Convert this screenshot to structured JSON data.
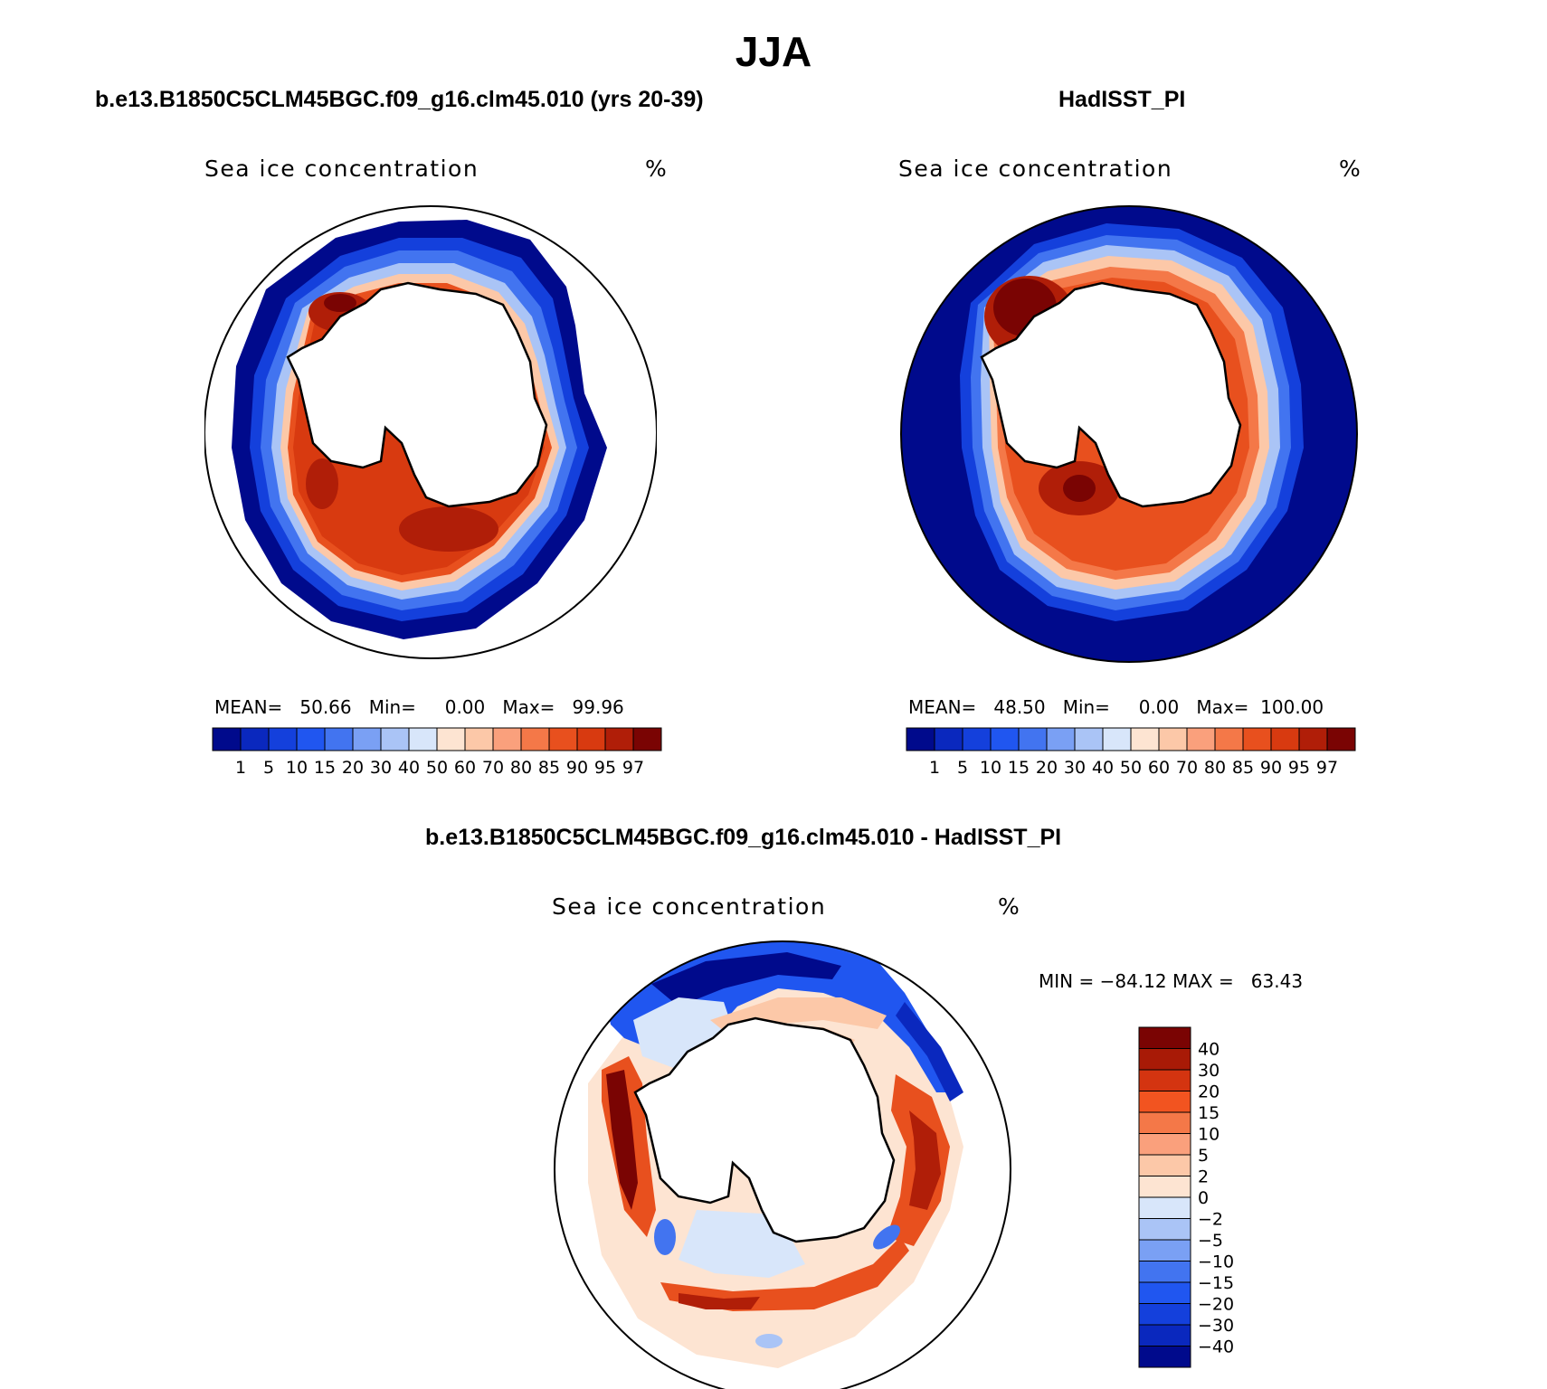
{
  "title": "JJA",
  "panels": [
    {
      "id": "model",
      "title": "b.e13.B1850C5CLM45BGC.f09_g16.clm45.010 (yrs 20-39)",
      "variable": "Sea ice concentration",
      "units": "%",
      "stats": "MEAN=   50.66   Min=     0.00   Max=   99.96"
    },
    {
      "id": "obs",
      "title": "HadISST_PI",
      "variable": "Sea ice concentration",
      "units": "%",
      "stats": "MEAN=   48.50   Min=     0.00   Max=  100.00"
    },
    {
      "id": "diff",
      "title": "b.e13.B1850C5CLM45BGC.f09_g16.clm45.010 - HadISST_PI",
      "variable": "Sea ice concentration",
      "units": "%",
      "stats": "MIN = −84.12 MAX =   63.43"
    }
  ],
  "colorbar_abs": {
    "labels": [
      "1",
      "5",
      "10",
      "15",
      "20",
      "30",
      "40",
      "50",
      "60",
      "70",
      "80",
      "85",
      "90",
      "95",
      "97"
    ],
    "colors": [
      "#000a8c",
      "#0a28be",
      "#1440dc",
      "#2056f0",
      "#4274f0",
      "#7aa0f4",
      "#aac4f6",
      "#d8e6fa",
      "#fde4d2",
      "#fcc8a8",
      "#faa07c",
      "#f47848",
      "#e8501e",
      "#d83a10",
      "#b01e08",
      "#7a0403"
    ]
  },
  "colorbar_diff": {
    "labels": [
      "40",
      "30",
      "20",
      "15",
      "10",
      "5",
      "2",
      "0",
      "−2",
      "−5",
      "−10",
      "−15",
      "−20",
      "−30",
      "−40"
    ],
    "colors": [
      "#7a0403",
      "#a81a06",
      "#d43410",
      "#f25420",
      "#f47848",
      "#faa07c",
      "#fcc8a8",
      "#fde4d2",
      "#d8e6fa",
      "#aac4f6",
      "#7aa0f4",
      "#4274f0",
      "#2056f0",
      "#1440dc",
      "#0a28be",
      "#000a8c"
    ]
  }
}
